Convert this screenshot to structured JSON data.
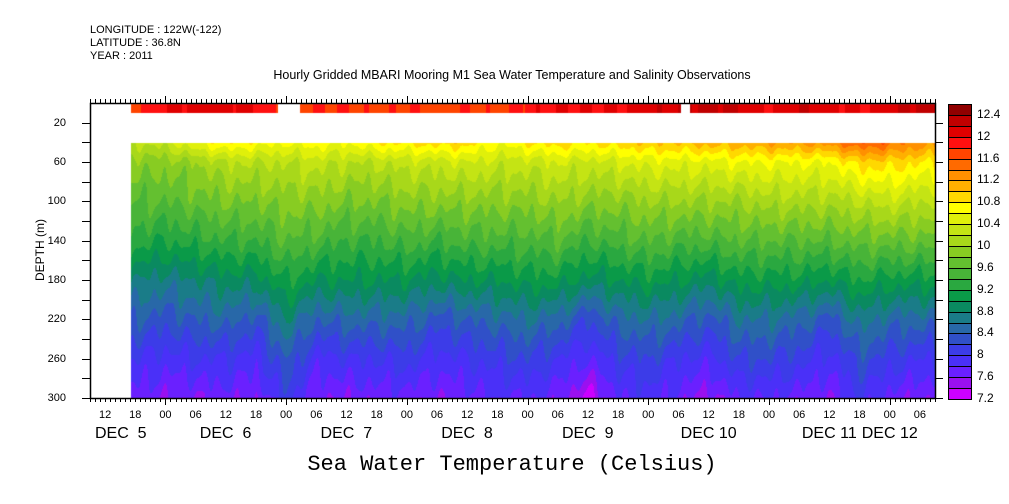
{
  "info": {
    "longitude": "LONGITUDE : 122W(-122)",
    "latitude": "LATITUDE : 36.8N",
    "year": "YEAR : 2011"
  },
  "chart_data": {
    "type": "heatmap",
    "title": "Hourly Gridded MBARI Mooring M1 Sea Water Temperature and Salinity Observations",
    "ylabel": "DEPTH (m)",
    "colorbar_title": "Sea Water Temperature (Celsius)",
    "x_units": "hours since DEC 5 2011 00:00",
    "xlim": [
      9,
      177
    ],
    "ylim": [
      0,
      300
    ],
    "y_inverted": true,
    "y_ticks": [
      20,
      60,
      100,
      140,
      180,
      220,
      260,
      300
    ],
    "x_tick_labels": [
      {
        "hour": 12,
        "label": "12"
      },
      {
        "hour": 18,
        "label": "18"
      },
      {
        "hour": 24,
        "label": "00"
      },
      {
        "hour": 30,
        "label": "06"
      },
      {
        "hour": 36,
        "label": "12"
      },
      {
        "hour": 42,
        "label": "18"
      },
      {
        "hour": 48,
        "label": "00"
      },
      {
        "hour": 54,
        "label": "06"
      },
      {
        "hour": 60,
        "label": "12"
      },
      {
        "hour": 66,
        "label": "18"
      },
      {
        "hour": 72,
        "label": "00"
      },
      {
        "hour": 78,
        "label": "06"
      },
      {
        "hour": 84,
        "label": "12"
      },
      {
        "hour": 90,
        "label": "18"
      },
      {
        "hour": 96,
        "label": "00"
      },
      {
        "hour": 102,
        "label": "06"
      },
      {
        "hour": 108,
        "label": "12"
      },
      {
        "hour": 114,
        "label": "18"
      },
      {
        "hour": 120,
        "label": "00"
      },
      {
        "hour": 126,
        "label": "06"
      },
      {
        "hour": 132,
        "label": "12"
      },
      {
        "hour": 138,
        "label": "18"
      },
      {
        "hour": 144,
        "label": "00"
      },
      {
        "hour": 150,
        "label": "06"
      },
      {
        "hour": 156,
        "label": "12"
      },
      {
        "hour": 162,
        "label": "18"
      },
      {
        "hour": 168,
        "label": "00"
      },
      {
        "hour": 174,
        "label": "06"
      }
    ],
    "day_labels": [
      {
        "hour": 12,
        "label": "DEC  5"
      },
      {
        "hour": 36,
        "label": "DEC  6"
      },
      {
        "hour": 60,
        "label": "DEC  7"
      },
      {
        "hour": 84,
        "label": "DEC  8"
      },
      {
        "hour": 108,
        "label": "DEC  9"
      },
      {
        "hour": 132,
        "label": "DEC 10"
      },
      {
        "hour": 156,
        "label": "DEC 11"
      },
      {
        "hour": 168,
        "label": "DEC 12"
      }
    ],
    "colorbar": {
      "levels_min": 7.2,
      "level_step": 0.2,
      "labels": [
        "7.2",
        "7.6",
        "8",
        "8.4",
        "8.8",
        "9.2",
        "9.6",
        "10",
        "10.4",
        "10.8",
        "11.2",
        "11.6",
        "12",
        "12.4"
      ],
      "colors": [
        "#cc00ff",
        "#9a10f0",
        "#6a20ff",
        "#4a30f8",
        "#3c3ce8",
        "#3050c8",
        "#2868a8",
        "#1a7c88",
        "#0a8a60",
        "#0a9a48",
        "#2aa840",
        "#48b438",
        "#64c030",
        "#88cc22",
        "#a8d81a",
        "#c4e414",
        "#e0f00a",
        "#ffff00",
        "#ffd800",
        "#ffb000",
        "#ff9000",
        "#ff6a00",
        "#ff4400",
        "#ff1010",
        "#e00000",
        "#c00000",
        "#900000"
      ]
    },
    "data_start_hour": 17,
    "surface": {
      "depth_range": [
        1,
        10
      ],
      "gaps_hours": [
        [
          46.2,
          50.7
        ],
        [
          126.5,
          128.1
        ]
      ],
      "values": [
        11.8,
        12.0,
        12.1,
        12.1,
        12.0,
        11.7,
        11.8,
        11.8,
        11.7,
        11.8,
        11.7,
        11.8,
        11.7,
        11.9,
        12.0,
        12.0,
        12.0,
        12.1,
        12.2,
        12.3,
        12.2,
        12.0,
        12.2,
        12.1,
        12.0,
        12.1,
        12.3
      ]
    },
    "times_hours": [
      18,
      24,
      30,
      36,
      42,
      48,
      54,
      60,
      66,
      72,
      78,
      84,
      90,
      96,
      102,
      108,
      114,
      120,
      126,
      132,
      138,
      144,
      150,
      156,
      162,
      168,
      174
    ],
    "depths": [
      40,
      60,
      100,
      140,
      180,
      220,
      260,
      300
    ],
    "values": [
      [
        10.2,
        9.9,
        9.6,
        9.3,
        8.8,
        8.4,
        8.0,
        7.7
      ],
      [
        10.3,
        9.9,
        9.6,
        9.2,
        8.7,
        8.3,
        7.9,
        7.6
      ],
      [
        10.6,
        10.0,
        9.7,
        9.3,
        8.8,
        8.4,
        8.0,
        7.6
      ],
      [
        10.8,
        10.2,
        9.8,
        9.4,
        8.9,
        8.5,
        8.0,
        7.7
      ],
      [
        10.7,
        10.2,
        9.8,
        9.4,
        8.9,
        8.3,
        7.9,
        7.6
      ],
      [
        10.6,
        10.2,
        9.9,
        9.6,
        9.2,
        8.8,
        8.4,
        8.1
      ],
      [
        10.7,
        10.3,
        9.9,
        9.5,
        9.0,
        8.4,
        7.9,
        7.6
      ],
      [
        10.6,
        10.2,
        9.8,
        9.4,
        9.0,
        8.5,
        8.0,
        7.6
      ],
      [
        10.8,
        10.2,
        9.8,
        9.4,
        9.0,
        8.5,
        8.0,
        7.7
      ],
      [
        10.8,
        10.3,
        9.9,
        9.5,
        9.0,
        8.5,
        8.1,
        7.7
      ],
      [
        10.9,
        10.3,
        9.9,
        9.4,
        8.9,
        8.3,
        7.9,
        7.6
      ],
      [
        10.9,
        10.4,
        9.9,
        9.5,
        9.0,
        8.4,
        8.0,
        7.7
      ],
      [
        10.6,
        10.3,
        9.9,
        9.5,
        9.0,
        8.5,
        8.1,
        7.8
      ],
      [
        10.8,
        10.3,
        9.9,
        9.5,
        9.1,
        8.6,
        8.2,
        7.8
      ],
      [
        10.9,
        10.4,
        10.0,
        9.6,
        9.1,
        8.5,
        8.0,
        7.7
      ],
      [
        10.8,
        10.3,
        9.9,
        9.4,
        8.9,
        8.2,
        7.8,
        7.3
      ],
      [
        10.9,
        10.4,
        9.9,
        9.5,
        9.0,
        8.5,
        8.1,
        7.8
      ],
      [
        11.0,
        10.5,
        10.0,
        9.6,
        9.1,
        8.6,
        8.2,
        7.9
      ],
      [
        11.0,
        10.5,
        10.0,
        9.5,
        9.0,
        8.5,
        8.0,
        7.7
      ],
      [
        11.1,
        10.5,
        10.0,
        9.5,
        8.9,
        8.3,
        7.9,
        7.5
      ],
      [
        11.1,
        10.6,
        10.0,
        9.6,
        9.1,
        8.6,
        8.2,
        7.8
      ],
      [
        11.2,
        10.6,
        10.1,
        9.6,
        9.1,
        8.6,
        8.2,
        7.8
      ],
      [
        11.2,
        10.6,
        10.1,
        9.6,
        9.1,
        8.5,
        8.1,
        7.7
      ],
      [
        11.3,
        10.6,
        10.1,
        9.6,
        9.0,
        8.3,
        7.9,
        7.6
      ],
      [
        11.6,
        10.9,
        10.2,
        9.7,
        9.2,
        8.7,
        8.3,
        8.0
      ],
      [
        11.5,
        10.9,
        10.3,
        9.7,
        9.1,
        8.5,
        8.1,
        7.7
      ],
      [
        11.3,
        10.8,
        10.2,
        9.7,
        9.1,
        8.5,
        8.0,
        7.6
      ]
    ]
  }
}
